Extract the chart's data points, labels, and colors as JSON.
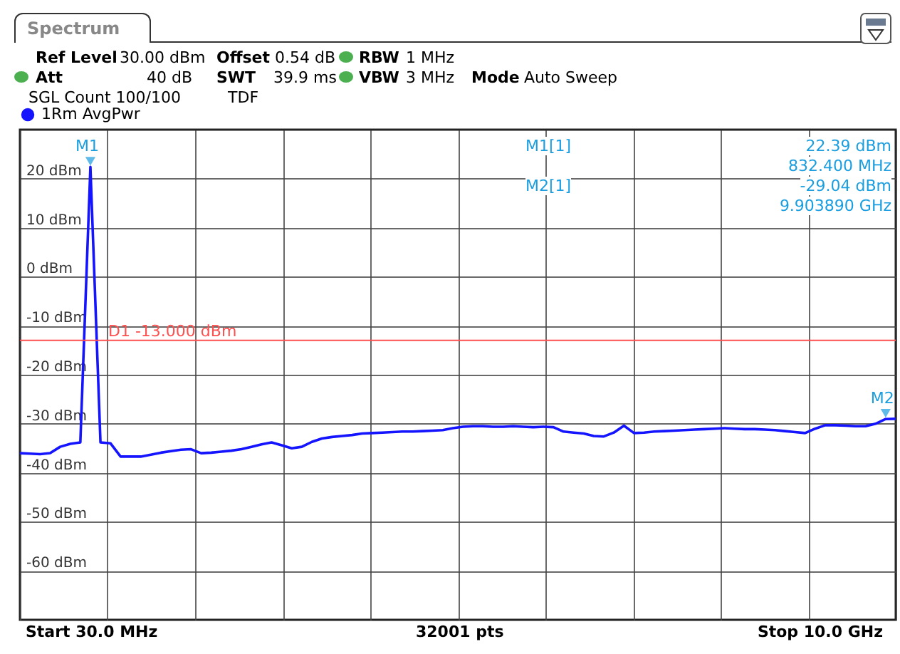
{
  "chart_data": {
    "type": "line",
    "title": "Spectrum",
    "categories": [
      null,
      null,
      null,
      null,
      null,
      null,
      null,
      null,
      null,
      null,
      null,
      null,
      null,
      null,
      null,
      null,
      null,
      null,
      null,
      null,
      null,
      null,
      null,
      null,
      null,
      null,
      null,
      null,
      null,
      null,
      null,
      null,
      null,
      null,
      null,
      null,
      null,
      null,
      null,
      null,
      null,
      null,
      null,
      null,
      null,
      null,
      null,
      null,
      null,
      null,
      null,
      null,
      null,
      null,
      null,
      null,
      null,
      null,
      null,
      null,
      null,
      null,
      null,
      null,
      null,
      null,
      null,
      null,
      null,
      null,
      null,
      null,
      null,
      null,
      null,
      null,
      null,
      null,
      null,
      null,
      null,
      null,
      null,
      null,
      null,
      null,
      null,
      null
    ],
    "series": [
      {
        "name": "1Rm AvgPwr",
        "color": "#1414ff",
        "values": [
          -36.0,
          -36.1,
          -36.2,
          -36.0,
          -34.7,
          -34.1,
          -33.8,
          22.39,
          -33.8,
          -34.0,
          -36.7,
          -36.7,
          -36.7,
          -36.3,
          -35.9,
          -35.6,
          -35.3,
          -35.2,
          -36.0,
          -35.9,
          -35.7,
          -35.5,
          -35.2,
          -34.7,
          -34.2,
          -33.8,
          -34.4,
          -35.0,
          -34.7,
          -33.7,
          -33.0,
          -32.7,
          -32.5,
          -32.3,
          -32.0,
          -31.9,
          -31.8,
          -31.7,
          -31.6,
          -31.6,
          -31.5,
          -31.4,
          -31.3,
          -30.9,
          -30.6,
          -30.5,
          -30.5,
          -30.6,
          -30.6,
          -30.5,
          -30.6,
          -30.7,
          -30.6,
          -30.7,
          -31.6,
          -31.8,
          -32.0,
          -32.5,
          -32.6,
          -31.8,
          -30.4,
          -31.9,
          -31.8,
          -31.6,
          -31.5,
          -31.4,
          -31.3,
          -31.2,
          -31.1,
          -31.0,
          -30.9,
          -31.0,
          -31.1,
          -31.1,
          -31.2,
          -31.3,
          -31.5,
          -31.7,
          -31.9,
          -31.0,
          -30.3,
          -30.3,
          -30.4,
          -30.5,
          -30.5,
          -30.0,
          -29.04,
          -29.0
        ]
      }
    ],
    "ylim": [
      -70,
      30
    ],
    "yticks": [
      {
        "value": -60,
        "label": "-60 dBm"
      },
      {
        "value": -50,
        "label": "-50 dBm"
      },
      {
        "value": -40,
        "label": "-40 dBm"
      },
      {
        "value": -30,
        "label": "-30 dBm"
      },
      {
        "value": -20,
        "label": "-20 dBm"
      },
      {
        "value": -10,
        "label": "-10 dBm"
      },
      {
        "value": 0,
        "label": "0 dBm"
      },
      {
        "value": 10,
        "label": "10 dBm"
      },
      {
        "value": 20,
        "label": "20 dBm"
      }
    ],
    "tick_labels": "y",
    "grid": true,
    "legend": "top left",
    "line_style": "solid",
    "ref_lines": [
      {
        "axis": "y",
        "value": -13,
        "label": "D1  -13.000 dBm",
        "color": "#ff5050"
      }
    ],
    "annotations": [
      "Ref Level",
      "30.00 dBm",
      "Offset",
      "0.54 dB",
      "RBW",
      "1 MHz",
      "Att",
      "40 dB",
      "SWT",
      "39.9 ms",
      "VBW",
      "3 MHz",
      "Mode",
      "Auto Sweep",
      "SGL Count 100/100",
      "TDF",
      "Start 30.0 MHz",
      "32001 pts",
      "Stop 10.0 GHz",
      "M1[1]",
      "22.39 dBm",
      "832.400 MHz",
      "M2[1]",
      "-29.04 dBm",
      "9.903890 GHz",
      {
        "text": "M1",
        "y": 22.39
      },
      {
        "text": "M2",
        "y": -29.04
      }
    ]
  }
}
